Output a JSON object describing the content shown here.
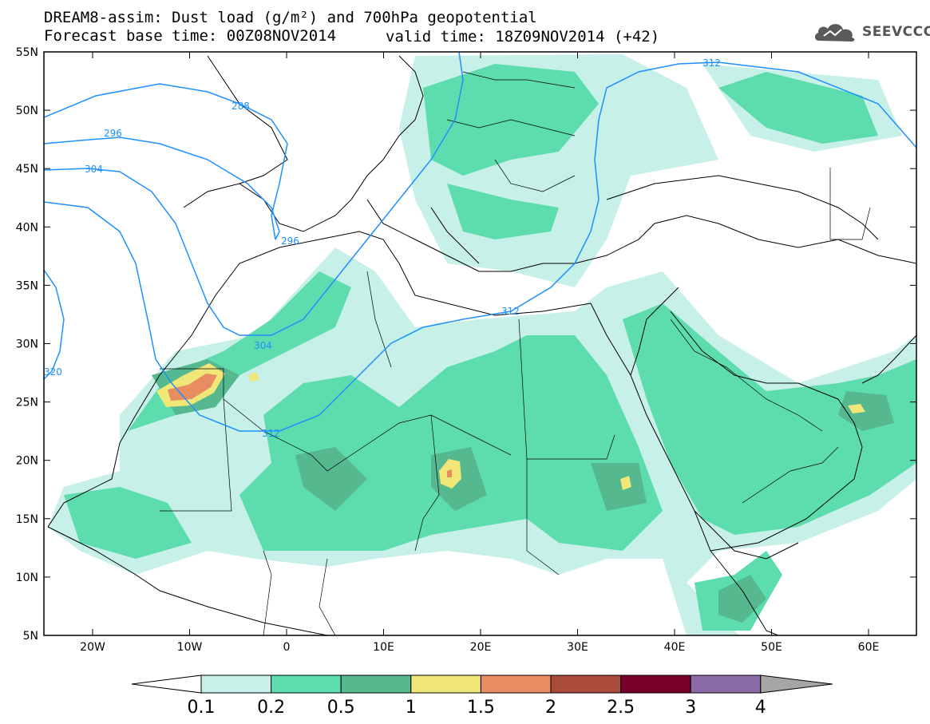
{
  "header": {
    "title_line1": "DREAM8-assim: Dust load (g/m²) and 700hPa geopotential",
    "title_line2": "Forecast base time: 00Z08NOV2014",
    "valid_time": "valid time: 18Z09NOV2014 (+42)",
    "logo_text": "SEEVCCC"
  },
  "axes": {
    "lat_labels": [
      "55N",
      "50N",
      "45N",
      "40N",
      "35N",
      "30N",
      "25N",
      "20N",
      "15N",
      "10N",
      "5N"
    ],
    "lon_labels": [
      "20W",
      "10W",
      "0",
      "10E",
      "20E",
      "30E",
      "40E",
      "50E",
      "60E"
    ]
  },
  "contour_labels": [
    "312",
    "288",
    "296",
    "304",
    "296",
    "304",
    "312",
    "312",
    "320"
  ],
  "colorbar": {
    "labels": [
      "0.1",
      "0.2",
      "0.5",
      "1",
      "1.5",
      "2",
      "2.5",
      "3",
      "4"
    ],
    "colors": [
      "#c6f0e8",
      "#5ddcae",
      "#55b88f",
      "#f1e678",
      "#e88c62",
      "#a94a3a",
      "#780028",
      "#8a6ba6",
      "#a6a6a6"
    ]
  },
  "colors": {
    "contour": "#1e90ff",
    "border": "#000000"
  }
}
